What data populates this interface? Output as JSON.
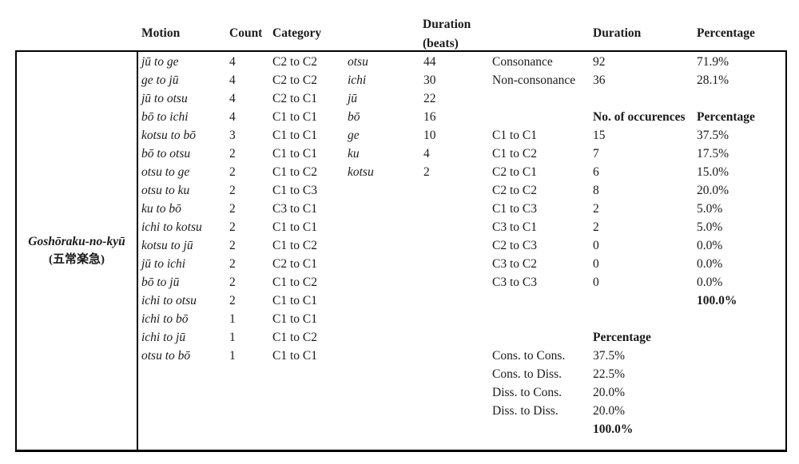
{
  "colors": {
    "text": "#1a1a1a",
    "border": "#000000",
    "background": "#ffffff"
  },
  "title_cell": {
    "romaji": "Goshōraku-no-kyū",
    "kanji": "(五常楽急)"
  },
  "headers": {
    "motion": "Motion",
    "count": "Count",
    "category": "Category",
    "duration_beats_line1": "Duration",
    "duration_beats_line2": "(beats)",
    "duration": "Duration",
    "percentage": "Percentage"
  },
  "motions": [
    {
      "motion": "jū to ge",
      "count": "4",
      "category": "C2 to C2"
    },
    {
      "motion": "ge to jū",
      "count": "4",
      "category": "C2 to C2"
    },
    {
      "motion": "jū to otsu",
      "count": "4",
      "category": "C2 to C1"
    },
    {
      "motion": "bō to ichi",
      "count": "4",
      "category": "C1 to C1"
    },
    {
      "motion": "kotsu to bō",
      "count": "3",
      "category": "C1 to C1"
    },
    {
      "motion": "bō to otsu",
      "count": "2",
      "category": "C1 to C1"
    },
    {
      "motion": "otsu to ge",
      "count": "2",
      "category": "C1 to C2"
    },
    {
      "motion": "otsu to ku",
      "count": "2",
      "category": "C1 to C3"
    },
    {
      "motion": "ku to bō",
      "count": "2",
      "category": "C3 to C1"
    },
    {
      "motion": "ichi to kotsu",
      "count": "2",
      "category": "C1 to C1"
    },
    {
      "motion": "kotsu to jū",
      "count": "2",
      "category": "C1 to C2"
    },
    {
      "motion": "jū to ichi",
      "count": "2",
      "category": "C2 to C1"
    },
    {
      "motion": "bō to jū",
      "count": "2",
      "category": "C1 to C2"
    },
    {
      "motion": "ichi to otsu",
      "count": "2",
      "category": "C1 to C1"
    },
    {
      "motion": "ichi to bō",
      "count": "1",
      "category": "C1 to C1"
    },
    {
      "motion": "ichi to jū",
      "count": "1",
      "category": "C1 to C2"
    },
    {
      "motion": "otsu to bō",
      "count": "1",
      "category": "C1 to C1"
    }
  ],
  "note_durations": [
    {
      "note": "otsu",
      "beats": "44"
    },
    {
      "note": "ichi",
      "beats": "30"
    },
    {
      "note": "jū",
      "beats": "22"
    },
    {
      "note": "bō",
      "beats": "16"
    },
    {
      "note": "ge",
      "beats": "10"
    },
    {
      "note": "ku",
      "beats": "4"
    },
    {
      "note": "kotsu",
      "beats": "2"
    }
  ],
  "consonance_summary": [
    {
      "label": "Consonance",
      "duration": "92",
      "pct": "71.9%"
    },
    {
      "label": "Non-consonance",
      "duration": "36",
      "pct": "28.1%"
    }
  ],
  "occurrences": {
    "header_occ": "No. of occurences",
    "header_pct": "Percentage",
    "rows": [
      {
        "category": "C1 to C1",
        "count": "15",
        "pct": "37.5%"
      },
      {
        "category": "C1 to C2",
        "count": "7",
        "pct": "17.5%"
      },
      {
        "category": "C2 to C1",
        "count": "6",
        "pct": "15.0%"
      },
      {
        "category": "C2 to C2",
        "count": "8",
        "pct": "20.0%"
      },
      {
        "category": "C1 to C3",
        "count": "2",
        "pct": "5.0%"
      },
      {
        "category": "C3 to C1",
        "count": "2",
        "pct": "5.0%"
      },
      {
        "category": "C2 to C3",
        "count": "0",
        "pct": "0.0%"
      },
      {
        "category": "C3 to C2",
        "count": "0",
        "pct": "0.0%"
      },
      {
        "category": "C3 to C3",
        "count": "0",
        "pct": "0.0%"
      }
    ],
    "total_pct": "100.0%"
  },
  "transitions": {
    "header_pct": "Percentage",
    "rows": [
      {
        "label": "Cons. to Cons.",
        "pct": "37.5%"
      },
      {
        "label": "Cons. to Diss.",
        "pct": "22.5%"
      },
      {
        "label": "Diss. to Cons.",
        "pct": "20.0%"
      },
      {
        "label": "Diss. to Diss.",
        "pct": "20.0%"
      }
    ],
    "total_pct": "100.0%"
  }
}
